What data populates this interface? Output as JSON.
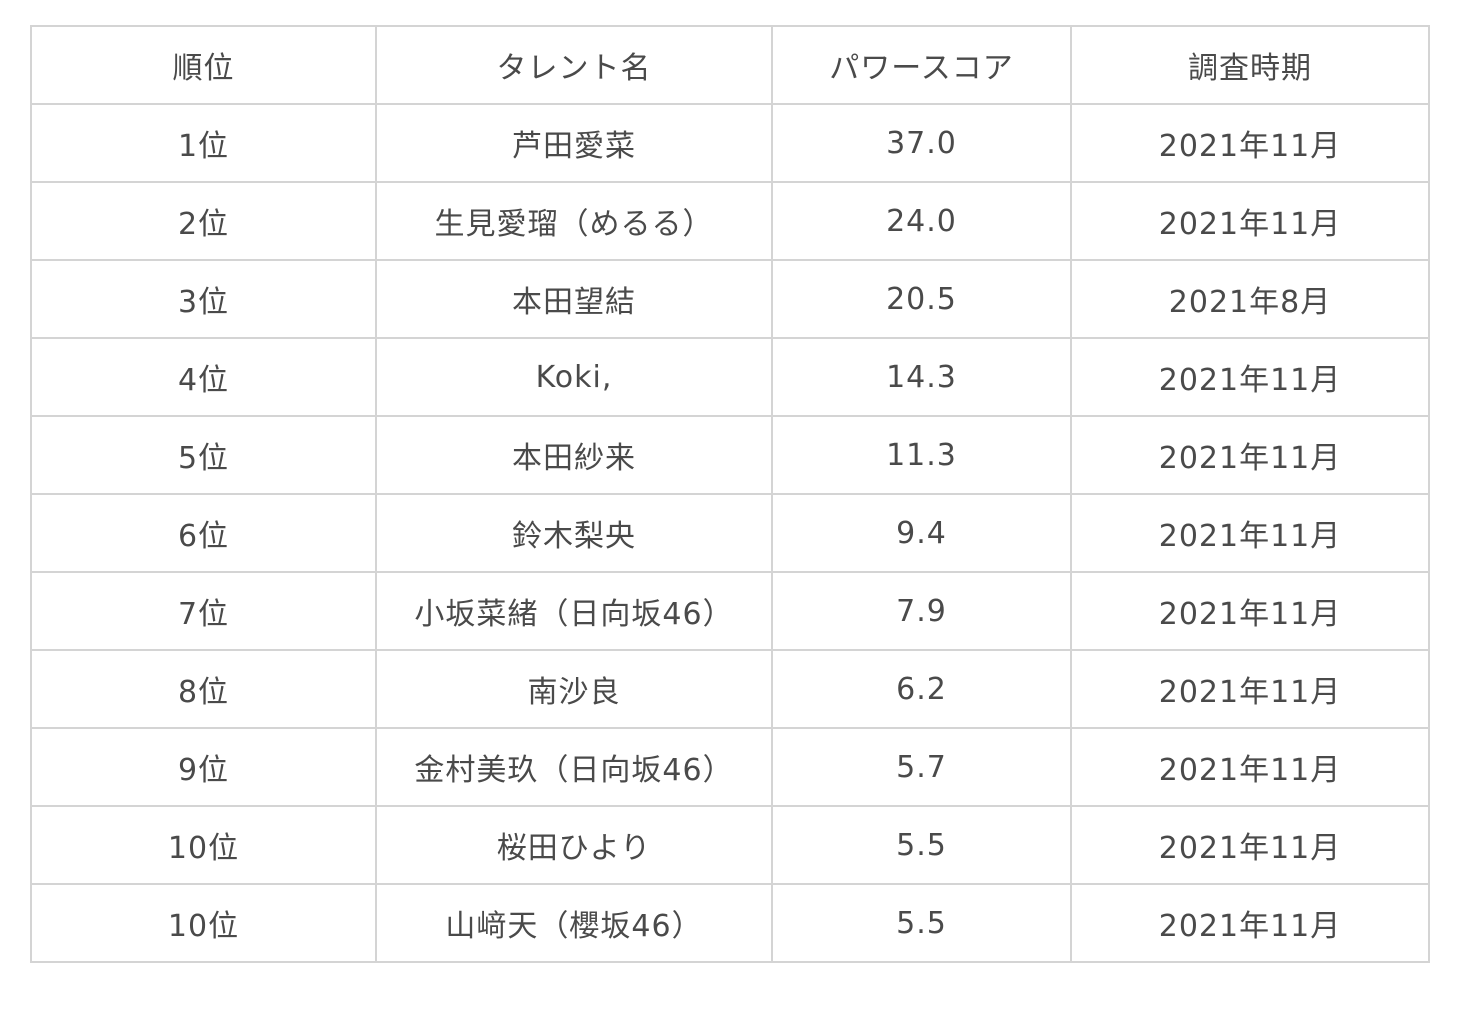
{
  "table": {
    "headers": [
      "順位",
      "タレント名",
      "パワースコア",
      "調査時期"
    ],
    "rows": [
      {
        "rank": "1位",
        "name": "芦田愛菜",
        "score": "37.0",
        "period": "2021年11月"
      },
      {
        "rank": "2位",
        "name": "生見愛瑠（めるる）",
        "score": "24.0",
        "period": "2021年11月"
      },
      {
        "rank": "3位",
        "name": "本田望結",
        "score": "20.5",
        "period": "2021年8月"
      },
      {
        "rank": "4位",
        "name": "Koki,",
        "score": "14.3",
        "period": "2021年11月"
      },
      {
        "rank": "5位",
        "name": "本田紗来",
        "score": "11.3",
        "period": "2021年11月"
      },
      {
        "rank": "6位",
        "name": "鈴木梨央",
        "score": "9.4",
        "period": "2021年11月"
      },
      {
        "rank": "7位",
        "name": "小坂菜緒（日向坂46）",
        "score": "7.9",
        "period": "2021年11月"
      },
      {
        "rank": "8位",
        "name": "南沙良",
        "score": "6.2",
        "period": "2021年11月"
      },
      {
        "rank": "9位",
        "name": "金村美玖（日向坂46）",
        "score": "5.7",
        "period": "2021年11月"
      },
      {
        "rank": "10位",
        "name": "桜田ひより",
        "score": "5.5",
        "period": "2021年11月"
      },
      {
        "rank": "10位",
        "name": "山﨑天（櫻坂46）",
        "score": "5.5",
        "period": "2021年11月"
      }
    ]
  }
}
